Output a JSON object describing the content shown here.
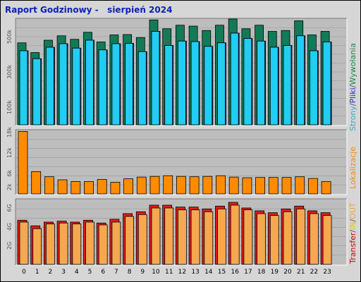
{
  "title": "Raport Godzinowy -   sierpień 2024",
  "chart_data": [
    {
      "type": "bar",
      "categories": [
        "0",
        "1",
        "2",
        "3",
        "4",
        "5",
        "6",
        "7",
        "8",
        "9",
        "10",
        "11",
        "12",
        "13",
        "14",
        "15",
        "16",
        "17",
        "18",
        "19",
        "20",
        "21",
        "22",
        "23"
      ],
      "ylabel_parts": [
        {
          "text": "Strony",
          "color": "#3aa6c8"
        },
        {
          "text": "/",
          "color": "#555555"
        },
        {
          "text": "Pliki",
          "color": "#1a2ec8"
        },
        {
          "text": "/",
          "color": "#555555"
        },
        {
          "text": "Wywołania",
          "color": "#1a8a4a"
        }
      ],
      "yticks": [
        {
          "label": "500k",
          "value": 500000
        },
        {
          "label": "300k",
          "value": 300000
        },
        {
          "label": "100k",
          "value": 100000
        }
      ],
      "ylim": [
        0,
        600000
      ],
      "series": [
        {
          "name": "Wywołania",
          "color": "#137a58",
          "values": [
            465000,
            410000,
            480000,
            505000,
            485000,
            525000,
            470000,
            510000,
            512000,
            495000,
            595000,
            545000,
            565000,
            560000,
            535000,
            565000,
            600000,
            545000,
            565000,
            530000,
            535000,
            590000,
            510000,
            530000
          ]
        },
        {
          "name": "Pliki",
          "color": "#1a2ec8",
          "values": [
            420000,
            375000,
            440000,
            460000,
            435000,
            480000,
            425000,
            460000,
            462000,
            415000,
            530000,
            450000,
            475000,
            472000,
            445000,
            465000,
            520000,
            490000,
            475000,
            440000,
            450000,
            505000,
            420000,
            470000
          ]
        },
        {
          "name": "Strony",
          "color": "#22ccf2",
          "values": [
            420000,
            375000,
            440000,
            460000,
            435000,
            480000,
            425000,
            460000,
            462000,
            415000,
            530000,
            450000,
            475000,
            472000,
            445000,
            465000,
            520000,
            490000,
            475000,
            440000,
            450000,
            505000,
            420000,
            470000
          ]
        }
      ]
    },
    {
      "type": "bar",
      "categories": [
        "0",
        "1",
        "2",
        "3",
        "4",
        "5",
        "6",
        "7",
        "8",
        "9",
        "10",
        "11",
        "12",
        "13",
        "14",
        "15",
        "16",
        "17",
        "18",
        "19",
        "20",
        "21",
        "22",
        "23"
      ],
      "ylabel_parts": [
        {
          "text": "Lokalizacje",
          "color": "#f08a10"
        }
      ],
      "yticks": [
        {
          "label": "18k",
          "value": 18000
        },
        {
          "label": "12k",
          "value": 12000
        },
        {
          "label": "6k",
          "value": 6000
        },
        {
          "label": "2k",
          "value": 2000
        }
      ],
      "ylim": [
        0,
        18500
      ],
      "series": [
        {
          "name": "Lokalizacje",
          "color": "#ff8c00",
          "values": [
            18200,
            6500,
            5000,
            4100,
            3600,
            3600,
            4200,
            3400,
            4400,
            4900,
            5100,
            5300,
            5100,
            5000,
            5100,
            5300,
            4900,
            4700,
            4800,
            4800,
            4800,
            5000,
            4500,
            3600
          ]
        }
      ]
    },
    {
      "type": "bar",
      "categories": [
        "0",
        "1",
        "2",
        "3",
        "4",
        "5",
        "6",
        "7",
        "8",
        "9",
        "10",
        "11",
        "12",
        "13",
        "14",
        "15",
        "16",
        "17",
        "18",
        "19",
        "20",
        "21",
        "22",
        "23"
      ],
      "ylabel_parts": [
        {
          "text": "Transfer",
          "color": "#cc0000"
        },
        {
          "text": "/",
          "color": "#555555"
        },
        {
          "text": "IN",
          "color": "#e8c020"
        },
        {
          "text": "/",
          "color": "#555555"
        },
        {
          "text": "OUT",
          "color": "#f0a040"
        }
      ],
      "yticks": [
        {
          "label": "6G",
          "value": 6
        },
        {
          "label": "4G",
          "value": 4
        },
        {
          "label": "2G",
          "value": 2
        }
      ],
      "ylim": [
        0,
        6.9
      ],
      "series": [
        {
          "name": "Transfer",
          "color": "#e11c1c",
          "values": [
            4.7,
            4.1,
            4.5,
            4.6,
            4.5,
            4.7,
            4.4,
            4.8,
            5.4,
            5.6,
            6.3,
            6.3,
            6.1,
            6.1,
            5.9,
            6.2,
            6.6,
            6.0,
            5.7,
            5.5,
            5.9,
            6.2,
            5.7,
            5.5
          ]
        },
        {
          "name": "OUT",
          "color": "#f5a850",
          "values": [
            4.5,
            3.8,
            4.3,
            4.4,
            4.3,
            4.5,
            4.2,
            4.5,
            5.1,
            5.3,
            6.0,
            6.0,
            5.8,
            5.8,
            5.6,
            5.9,
            6.3,
            5.8,
            5.4,
            5.2,
            5.6,
            5.9,
            5.4,
            5.2
          ]
        }
      ]
    }
  ]
}
